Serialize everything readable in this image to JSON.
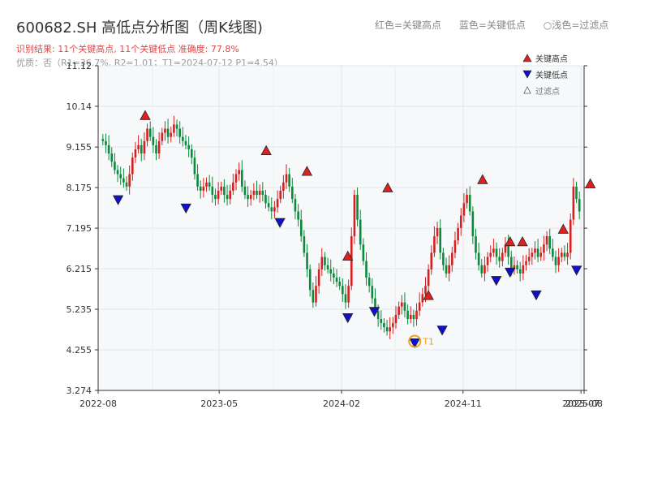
{
  "header": {
    "title": "600682.SH 高低点分析图（周K线图)",
    "result_line": "识别结果: 11个关键高点, 11个关键低点   准确度: 77.8%",
    "quality_line": "优质：否（R1=36.7%, R2=1.01；T1=2024-07-12 P1=4.54）",
    "legend_red": "红色=关键高点",
    "legend_blue": "蓝色=关键低点",
    "legend_light": "○浅色=过滤点"
  },
  "chart_data": {
    "type": "candlestick",
    "ylim": [
      3.274,
      11.12
    ],
    "yticks": [
      "3.274",
      "4.255",
      "5.235",
      "6.215",
      "7.195",
      "8.175",
      "9.155",
      "10.14",
      "11.12"
    ],
    "xticks": [
      "2022-08",
      "2023-05",
      "2024-02",
      "2024-11",
      "2025-07",
      "2025-08"
    ],
    "colors": {
      "up": "#d62020",
      "down": "#0a8a3a",
      "high_marker": "#e02020",
      "low_marker": "#1010cc",
      "t1": "#f0a020"
    },
    "legend": [
      "关键高点",
      "关键低点",
      "过滤点"
    ],
    "annotation": "T1",
    "close_series": [
      9.3,
      9.2,
      9.0,
      8.8,
      8.6,
      8.5,
      8.4,
      8.3,
      8.2,
      8.5,
      8.9,
      9.1,
      9.2,
      9.0,
      9.3,
      9.6,
      9.4,
      9.2,
      9.0,
      9.3,
      9.5,
      9.6,
      9.4,
      9.5,
      9.7,
      9.6,
      9.4,
      9.3,
      9.2,
      9.1,
      8.9,
      8.5,
      8.2,
      8.1,
      8.2,
      8.3,
      8.2,
      8.0,
      7.9,
      8.1,
      8.2,
      8.0,
      7.9,
      8.1,
      8.3,
      8.5,
      8.6,
      8.2,
      8.0,
      7.9,
      8.0,
      8.1,
      8.0,
      8.1,
      8.0,
      7.8,
      7.7,
      7.6,
      7.7,
      7.9,
      8.1,
      8.3,
      8.5,
      8.2,
      7.9,
      7.6,
      7.4,
      7.0,
      6.6,
      6.2,
      5.7,
      5.4,
      5.8,
      6.2,
      6.5,
      6.3,
      6.2,
      6.1,
      6.0,
      5.9,
      5.8,
      5.6,
      5.4,
      5.8,
      7.0,
      8.0,
      7.4,
      6.8,
      6.4,
      6.0,
      5.8,
      5.5,
      5.2,
      5.0,
      4.9,
      4.8,
      4.7,
      4.8,
      4.9,
      5.1,
      5.3,
      5.4,
      5.2,
      5.0,
      5.1,
      5.0,
      5.2,
      5.4,
      5.6,
      5.8,
      6.2,
      6.6,
      7.0,
      7.2,
      6.6,
      6.3,
      6.1,
      6.3,
      6.6,
      6.9,
      7.2,
      7.5,
      7.8,
      8.0,
      7.6,
      7.0,
      6.6,
      6.3,
      6.1,
      6.3,
      6.5,
      6.6,
      6.7,
      6.5,
      6.4,
      6.6,
      6.8,
      6.5,
      6.2,
      6.3,
      6.2,
      6.1,
      6.3,
      6.4,
      6.5,
      6.6,
      6.7,
      6.5,
      6.6,
      6.8,
      7.0,
      6.7,
      6.5,
      6.3,
      6.5,
      6.6,
      6.5,
      6.6,
      7.4,
      8.2,
      7.9,
      7.6
    ],
    "key_highs": [
      {
        "date": "2022-11",
        "value": 9.8
      },
      {
        "date": "2023-08",
        "value": 8.95
      },
      {
        "date": "2023-11",
        "value": 8.45
      },
      {
        "date": "2024-02",
        "value": 6.4
      },
      {
        "date": "2024-05",
        "value": 8.05
      },
      {
        "date": "2024-08",
        "value": 5.45
      },
      {
        "date": "2024-12",
        "value": 8.25
      },
      {
        "date": "2025-02",
        "value": 6.75
      },
      {
        "date": "2025-03",
        "value": 6.75
      },
      {
        "date": "2025-06",
        "value": 7.05
      },
      {
        "date": "2025-08",
        "value": 8.15
      }
    ],
    "key_lows": [
      {
        "date": "2022-09",
        "value": 8.0
      },
      {
        "date": "2023-02",
        "value": 7.8
      },
      {
        "date": "2023-09",
        "value": 7.45
      },
      {
        "date": "2024-02",
        "value": 5.15
      },
      {
        "date": "2024-04",
        "value": 5.3
      },
      {
        "date": "2024-07",
        "value": 4.54
      },
      {
        "date": "2024-09",
        "value": 4.85
      },
      {
        "date": "2025-01",
        "value": 6.05
      },
      {
        "date": "2025-02",
        "value": 6.25
      },
      {
        "date": "2025-04",
        "value": 5.7
      },
      {
        "date": "2025-07",
        "value": 6.3
      }
    ]
  }
}
